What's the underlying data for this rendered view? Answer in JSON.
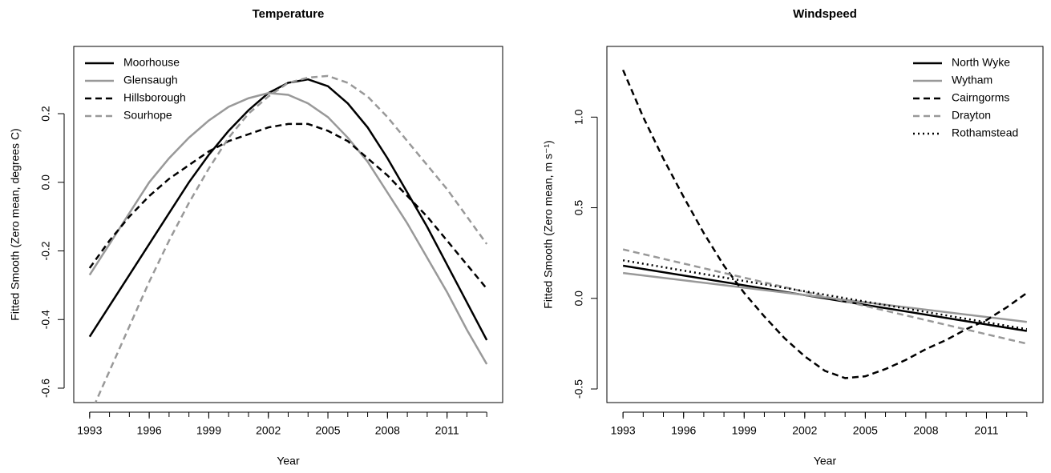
{
  "chart_data": [
    {
      "type": "line",
      "title": "Temperature",
      "x_label": "Year",
      "y_label": "Fitted Smooth (Zero mean, degrees C)",
      "x": [
        1993,
        1994,
        1995,
        1996,
        1997,
        1998,
        1999,
        2000,
        2001,
        2002,
        2003,
        2004,
        2005,
        2006,
        2007,
        2008,
        2009,
        2010,
        2011,
        2012,
        2013
      ],
      "series": [
        {
          "name": "Moorhouse",
          "color": "#000000",
          "line_style": "solid",
          "values": [
            -0.45,
            -0.36,
            -0.27,
            -0.18,
            -0.09,
            0.0,
            0.08,
            0.15,
            0.21,
            0.26,
            0.29,
            0.3,
            0.28,
            0.23,
            0.16,
            0.07,
            -0.03,
            -0.13,
            -0.24,
            -0.35,
            -0.46
          ]
        },
        {
          "name": "Glensaugh",
          "color": "#999999",
          "line_style": "solid",
          "values": [
            -0.27,
            -0.18,
            -0.09,
            0.0,
            0.07,
            0.13,
            0.18,
            0.22,
            0.245,
            0.26,
            0.255,
            0.23,
            0.19,
            0.13,
            0.06,
            -0.03,
            -0.12,
            -0.22,
            -0.32,
            -0.43,
            -0.53
          ]
        },
        {
          "name": "Hillsborough",
          "color": "#000000",
          "line_style": "dashed",
          "values": [
            -0.25,
            -0.17,
            -0.1,
            -0.04,
            0.01,
            0.05,
            0.09,
            0.12,
            0.14,
            0.16,
            0.17,
            0.17,
            0.15,
            0.12,
            0.07,
            0.02,
            -0.04,
            -0.1,
            -0.17,
            -0.24,
            -0.31
          ]
        },
        {
          "name": "Sourhope",
          "color": "#999999",
          "line_style": "dashed",
          "values": [
            -0.68,
            -0.55,
            -0.42,
            -0.29,
            -0.17,
            -0.06,
            0.04,
            0.13,
            0.2,
            0.25,
            0.29,
            0.305,
            0.31,
            0.29,
            0.25,
            0.19,
            0.12,
            0.05,
            -0.02,
            -0.1,
            -0.18
          ]
        }
      ],
      "xlim": [
        1992.2,
        2013.8
      ],
      "ylim": [
        -0.642,
        0.396
      ],
      "xticks": [
        1993,
        1996,
        1999,
        2002,
        2005,
        2008,
        2011
      ],
      "xticks_minor": [
        1993,
        1994,
        1995,
        1996,
        1997,
        1998,
        1999,
        2000,
        2001,
        2002,
        2003,
        2004,
        2005,
        2006,
        2007,
        2008,
        2009,
        2010,
        2011,
        2012,
        2013
      ],
      "yticks": [
        -0.6,
        -0.4,
        -0.2,
        {
          "value": 0,
          "label": "0.0"
        },
        0.2
      ],
      "legend": "top-left"
    },
    {
      "type": "line",
      "title": "Windspeed",
      "x_label": "Year",
      "y_label": "Fitted Smooth (Zero mean, m s⁻¹)",
      "x": [
        1993,
        1994,
        1995,
        1996,
        1997,
        1998,
        1999,
        2000,
        2001,
        2002,
        2003,
        2004,
        2005,
        2006,
        2007,
        2008,
        2009,
        2010,
        2011,
        2012,
        2013
      ],
      "series": [
        {
          "name": "North Wyke",
          "color": "#000000",
          "line_style": "solid",
          "x": [
            1993,
            2013
          ],
          "values": [
            0.18,
            -0.18
          ]
        },
        {
          "name": "Wytham",
          "color": "#999999",
          "line_style": "solid",
          "x": [
            1993,
            2013
          ],
          "values": [
            0.14,
            -0.13
          ]
        },
        {
          "name": "Cairngorms",
          "color": "#000000",
          "line_style": "dashed",
          "values": [
            1.26,
            1.0,
            0.77,
            0.56,
            0.36,
            0.18,
            0.03,
            -0.1,
            -0.22,
            -0.32,
            -0.4,
            -0.44,
            -0.43,
            -0.39,
            -0.34,
            -0.28,
            -0.23,
            -0.17,
            -0.12,
            -0.05,
            0.03
          ]
        },
        {
          "name": "Drayton",
          "color": "#999999",
          "line_style": "dashed",
          "x": [
            1993,
            2013
          ],
          "values": [
            0.27,
            -0.25
          ]
        },
        {
          "name": "Rothamstead",
          "color": "#000000",
          "line_style": "dotted",
          "x": [
            1993,
            2013
          ],
          "values": [
            0.21,
            -0.17
          ]
        }
      ],
      "xlim": [
        1992.2,
        2013.8
      ],
      "ylim": [
        -0.575,
        1.39
      ],
      "xticks": [
        1993,
        1996,
        1999,
        2002,
        2005,
        2008,
        2011
      ],
      "xticks_minor": [
        1993,
        1994,
        1995,
        1996,
        1997,
        1998,
        1999,
        2000,
        2001,
        2002,
        2003,
        2004,
        2005,
        2006,
        2007,
        2008,
        2009,
        2010,
        2011,
        2012,
        2013
      ],
      "yticks": [
        -0.5,
        {
          "value": 0,
          "label": "0.0"
        },
        0.5,
        {
          "value": 1,
          "label": "1.0"
        }
      ],
      "legend": "top-right"
    }
  ]
}
